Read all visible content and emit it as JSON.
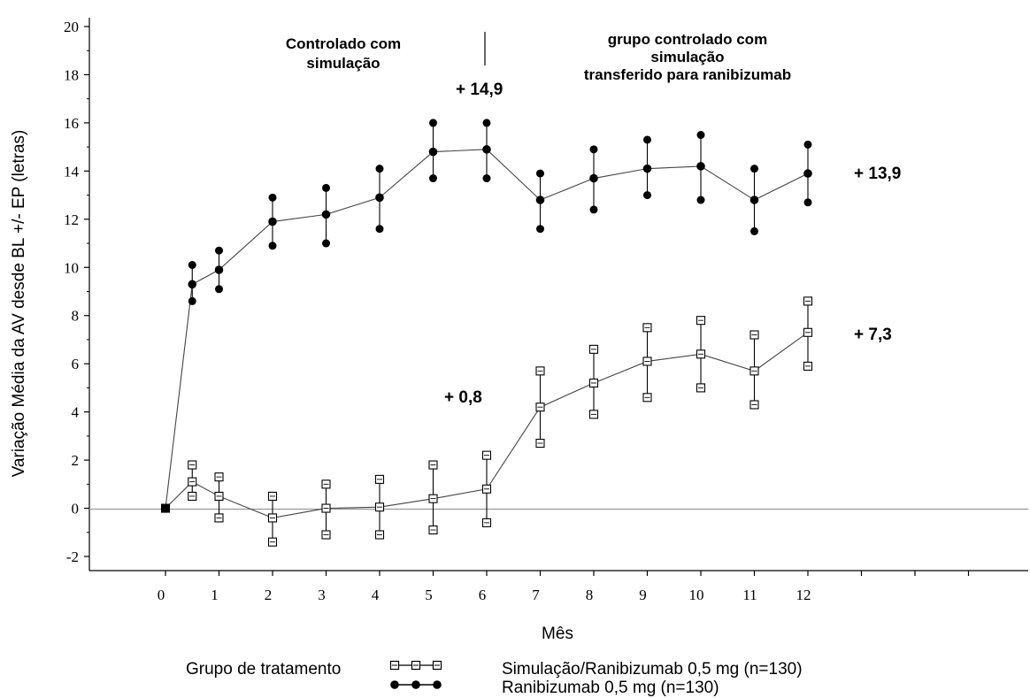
{
  "chart_data": {
    "type": "line",
    "xlabel": "Mês",
    "ylabel": "Variação Média da AV desde BL +/- EP (letras)",
    "ylim": [
      -2,
      20
    ],
    "yticks": [
      -2,
      0,
      2,
      4,
      6,
      8,
      10,
      12,
      14,
      16,
      18,
      20
    ],
    "xticks": [
      0,
      1,
      2,
      3,
      4,
      5,
      6,
      7,
      8,
      9,
      10,
      11,
      12
    ],
    "grid": false,
    "series": [
      {
        "name": "Simulação/Ranibizumab 0,5 mg (n=130)",
        "marker": "open-square",
        "x": [
          0,
          0.5,
          1,
          2,
          3,
          4,
          5,
          6,
          7,
          8,
          9,
          10,
          11,
          12
        ],
        "y": [
          0,
          1.1,
          0.5,
          -0.4,
          0.0,
          0.05,
          0.4,
          0.8,
          4.2,
          5.2,
          6.1,
          6.4,
          5.7,
          7.3
        ],
        "err_low": [
          0,
          0.5,
          -0.4,
          -1.4,
          -1.1,
          -1.1,
          -0.9,
          -0.6,
          2.7,
          3.9,
          4.6,
          5.0,
          4.3,
          5.9
        ],
        "err_high": [
          0,
          1.8,
          1.3,
          0.5,
          1.0,
          1.2,
          1.8,
          2.2,
          5.7,
          6.6,
          7.5,
          7.8,
          7.2,
          8.6
        ]
      },
      {
        "name": "Ranibizumab 0,5 mg (n=130)",
        "marker": "filled-circle",
        "x": [
          0,
          0.5,
          1,
          2,
          3,
          4,
          5,
          6,
          7,
          8,
          9,
          10,
          11,
          12
        ],
        "y": [
          0,
          9.3,
          9.9,
          11.9,
          12.2,
          12.9,
          14.8,
          14.9,
          12.8,
          13.7,
          14.1,
          14.2,
          12.8,
          13.9
        ],
        "err_low": [
          0,
          8.6,
          9.1,
          10.9,
          11.0,
          11.6,
          13.7,
          13.7,
          11.6,
          12.4,
          13.0,
          12.8,
          11.5,
          12.7
        ],
        "err_high": [
          0,
          10.1,
          10.7,
          12.9,
          13.3,
          14.1,
          16.0,
          16.0,
          13.9,
          14.9,
          15.3,
          15.5,
          14.1,
          15.1
        ]
      }
    ],
    "annotations": {
      "phase_left": [
        "Controlado com",
        "simulação"
      ],
      "phase_right": [
        "grupo controlado com",
        "simulação",
        "transferido para ranibizumab"
      ],
      "peak_ranibizumab": "+ 14,9",
      "end_ranibizumab": "+ 13,9",
      "month6_simulation": "+ 0,8",
      "end_simulation": "+ 7,3"
    },
    "legend": {
      "title": "Grupo de tratamento",
      "placement": "bottom"
    }
  }
}
